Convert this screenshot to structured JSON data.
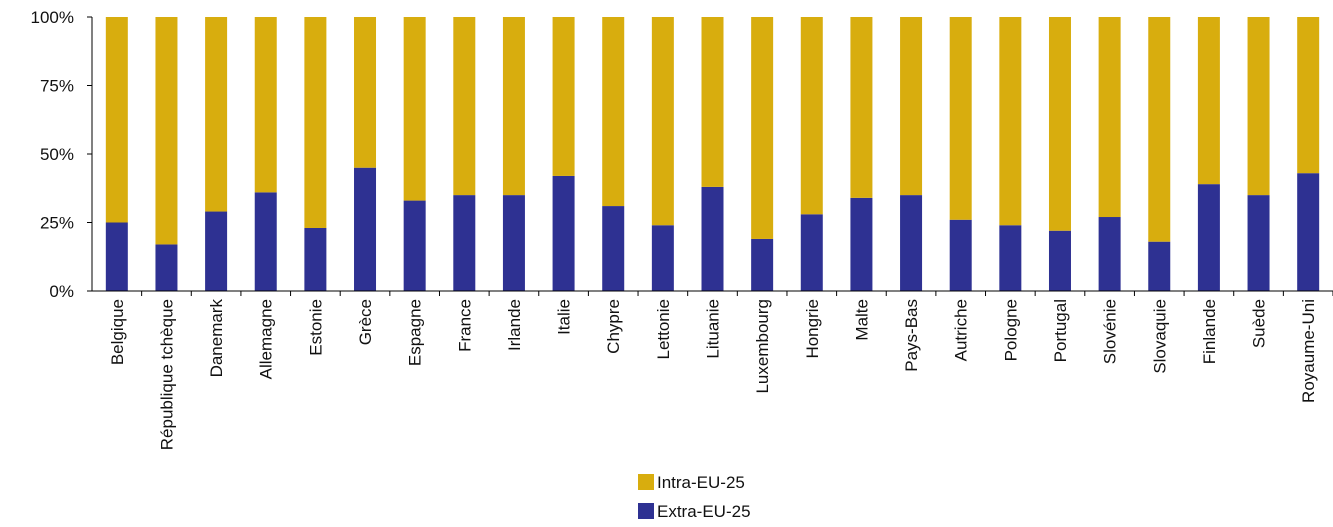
{
  "chart_data": {
    "type": "bar",
    "stacked": true,
    "normalized": true,
    "title": "",
    "xlabel": "",
    "ylabel": "",
    "ylim": [
      0,
      100
    ],
    "y_ticks": [
      "0%",
      "25%",
      "50%",
      "75%",
      "100%"
    ],
    "grid": false,
    "legend_position": "bottom-center",
    "categories": [
      "Belgique",
      "République tchèque",
      "Danemark",
      "Allemagne",
      "Estonie",
      "Grèce",
      "Espagne",
      "France",
      "Irlande",
      "Italie",
      "Chypre",
      "Lettonie",
      "Lituanie",
      "Luxembourg",
      "Hongrie",
      "Malte",
      "Pays-Bas",
      "Autriche",
      "Pologne",
      "Portugal",
      "Slovénie",
      "Slovaquie",
      "Finlande",
      "Suède",
      "Royaume-Uni"
    ],
    "series": [
      {
        "name": "Extra-EU-25",
        "color": "#2e3192",
        "values": [
          25,
          17,
          29,
          36,
          23,
          45,
          33,
          35,
          35,
          42,
          31,
          24,
          38,
          19,
          28,
          34,
          35,
          26,
          24,
          22,
          27,
          18,
          39,
          35,
          43
        ]
      },
      {
        "name": "Intra-EU-25",
        "color": "#d8ad0e",
        "values": [
          75,
          83,
          71,
          64,
          77,
          55,
          67,
          65,
          65,
          58,
          69,
          76,
          62,
          81,
          72,
          66,
          65,
          74,
          76,
          78,
          73,
          82,
          61,
          65,
          57
        ]
      }
    ],
    "legend_order": [
      "Intra-EU-25",
      "Extra-EU-25"
    ]
  }
}
